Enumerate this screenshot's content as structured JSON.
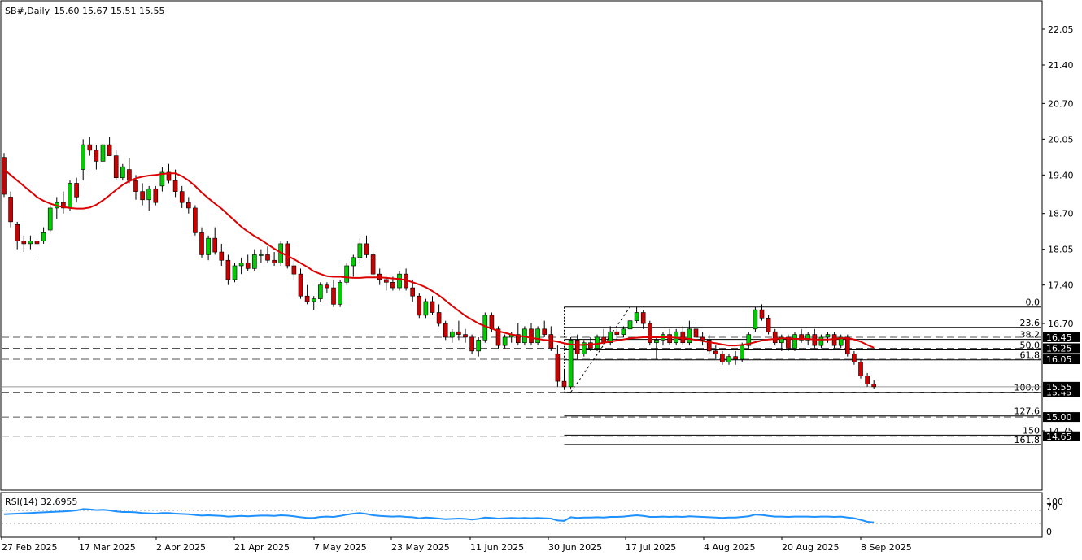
{
  "header": {
    "symbol_tf": "SB#,Daily",
    "ohlc": "15.60 15.67 15.51 15.55"
  },
  "rsi_panel": {
    "label": "RSI(14) 32.6955",
    "levels": [
      "100",
      "70",
      "0"
    ]
  },
  "colors": {
    "bull": "#00cc00",
    "bear": "#cc0000",
    "wick": "#000000",
    "ma": "#dd0000",
    "rsi": "#1e90ff",
    "fib": "#000000",
    "dash": "#555555",
    "tag_bg": "#000000",
    "tag_fg": "#ffffff"
  },
  "chart_data": {
    "type": "candlestick",
    "title": "SB#,Daily",
    "price_axis": {
      "ticks": [
        "22.05",
        "21.40",
        "20.70",
        "20.05",
        "19.40",
        "18.70",
        "18.05",
        "17.40",
        "16.70",
        "14.75"
      ],
      "range": [
        14.6,
        22.5
      ]
    },
    "time_axis": {
      "labels": [
        "27 Feb 2025",
        "17 Mar 2025",
        "2 Apr 2025",
        "21 Apr 2025",
        "7 May 2025",
        "23 May 2025",
        "11 Jun 2025",
        "30 Jun 2025",
        "17 Jul 2025",
        "4 Aug 2025",
        "20 Aug 2025",
        "8 Sep 2025"
      ]
    },
    "fibonacci": {
      "high": 17.0,
      "low": 15.45,
      "levels": [
        {
          "label": "0.0",
          "price": 17.0
        },
        {
          "label": "23.6",
          "price": 16.63
        },
        {
          "label": "38.2",
          "price": 16.41
        },
        {
          "label": "50.0",
          "price": 16.22
        },
        {
          "label": "61.8",
          "price": 16.04
        },
        {
          "label": "100.0",
          "price": 15.45
        },
        {
          "label": "127.6",
          "price": 15.02
        },
        {
          "label": "150",
          "price": 14.67
        },
        {
          "label": "161.8",
          "price": 14.5
        }
      ]
    },
    "horizontal_lines": [
      {
        "label": "16.45",
        "price": 16.45
      },
      {
        "label": "16.25",
        "price": 16.25
      },
      {
        "label": "16.05",
        "price": 16.05
      },
      {
        "label": "15.45",
        "price": 15.45
      },
      {
        "label": "15.00",
        "price": 15.0
      },
      {
        "label": "14.65",
        "price": 14.65
      }
    ],
    "current_price": {
      "label": "15.55",
      "price": 15.55
    },
    "candles": [
      [
        19.72,
        19.8,
        19.0,
        19.05
      ],
      [
        19.0,
        19.1,
        18.45,
        18.55
      ],
      [
        18.5,
        18.55,
        18.05,
        18.2
      ],
      [
        18.2,
        18.3,
        18.0,
        18.15
      ],
      [
        18.15,
        18.3,
        18.05,
        18.2
      ],
      [
        18.2,
        18.3,
        17.9,
        18.15
      ],
      [
        18.2,
        18.45,
        18.15,
        18.35
      ],
      [
        18.4,
        18.85,
        18.35,
        18.8
      ],
      [
        18.8,
        19.0,
        18.6,
        18.9
      ],
      [
        18.9,
        19.1,
        18.7,
        18.8
      ],
      [
        18.8,
        19.3,
        18.75,
        19.25
      ],
      [
        19.25,
        19.35,
        18.9,
        19.0
      ],
      [
        19.5,
        20.05,
        19.3,
        19.95
      ],
      [
        19.95,
        20.1,
        19.75,
        19.85
      ],
      [
        19.85,
        19.95,
        19.5,
        19.65
      ],
      [
        19.65,
        20.1,
        19.6,
        19.95
      ],
      [
        19.95,
        20.1,
        19.75,
        19.75
      ],
      [
        19.75,
        19.85,
        19.3,
        19.35
      ],
      [
        19.35,
        19.6,
        19.3,
        19.55
      ],
      [
        19.5,
        19.7,
        19.25,
        19.3
      ],
      [
        19.3,
        19.4,
        18.95,
        19.1
      ],
      [
        19.1,
        19.25,
        18.85,
        18.95
      ],
      [
        18.95,
        19.2,
        18.75,
        19.15
      ],
      [
        19.15,
        19.2,
        18.85,
        18.9
      ],
      [
        19.2,
        19.55,
        19.1,
        19.45
      ],
      [
        19.45,
        19.6,
        19.25,
        19.3
      ],
      [
        19.3,
        19.5,
        19.0,
        19.1
      ],
      [
        19.1,
        19.2,
        18.8,
        18.9
      ],
      [
        18.9,
        19.0,
        18.7,
        18.8
      ],
      [
        18.8,
        18.85,
        18.3,
        18.35
      ],
      [
        18.35,
        18.45,
        17.9,
        17.95
      ],
      [
        17.95,
        18.3,
        17.85,
        18.25
      ],
      [
        18.25,
        18.45,
        17.95,
        18.0
      ],
      [
        18.0,
        18.15,
        17.75,
        17.85
      ],
      [
        17.85,
        17.95,
        17.4,
        17.5
      ],
      [
        17.5,
        17.8,
        17.45,
        17.75
      ],
      [
        17.75,
        17.9,
        17.6,
        17.8
      ],
      [
        17.8,
        17.95,
        17.65,
        17.7
      ],
      [
        17.7,
        18.05,
        17.65,
        17.95
      ],
      [
        17.95,
        18.05,
        17.8,
        17.95
      ],
      [
        17.95,
        18.1,
        17.8,
        17.85
      ],
      [
        17.85,
        18.0,
        17.75,
        17.8
      ],
      [
        17.8,
        18.2,
        17.75,
        18.15
      ],
      [
        18.15,
        18.2,
        17.7,
        17.75
      ],
      [
        17.75,
        17.9,
        17.5,
        17.6
      ],
      [
        17.6,
        17.7,
        17.15,
        17.2
      ],
      [
        17.2,
        17.4,
        17.05,
        17.1
      ],
      [
        17.1,
        17.2,
        16.95,
        17.15
      ],
      [
        17.15,
        17.45,
        17.1,
        17.4
      ],
      [
        17.4,
        17.45,
        17.25,
        17.35
      ],
      [
        17.35,
        17.5,
        17.0,
        17.05
      ],
      [
        17.05,
        17.5,
        17.0,
        17.45
      ],
      [
        17.45,
        17.8,
        17.4,
        17.75
      ],
      [
        17.75,
        17.95,
        17.55,
        17.9
      ],
      [
        17.9,
        18.25,
        17.8,
        18.15
      ],
      [
        18.15,
        18.3,
        17.9,
        17.95
      ],
      [
        17.95,
        18.0,
        17.55,
        17.6
      ],
      [
        17.6,
        17.7,
        17.4,
        17.5
      ],
      [
        17.5,
        17.55,
        17.3,
        17.45
      ],
      [
        17.45,
        17.55,
        17.3,
        17.35
      ],
      [
        17.35,
        17.65,
        17.3,
        17.6
      ],
      [
        17.6,
        17.7,
        17.3,
        17.35
      ],
      [
        17.35,
        17.5,
        17.1,
        17.2
      ],
      [
        17.2,
        17.25,
        16.8,
        16.85
      ],
      [
        16.85,
        17.15,
        16.8,
        17.1
      ],
      [
        17.1,
        17.2,
        16.85,
        16.9
      ],
      [
        16.9,
        17.05,
        16.65,
        16.7
      ],
      [
        16.7,
        16.75,
        16.4,
        16.45
      ],
      [
        16.45,
        16.6,
        16.35,
        16.55
      ],
      [
        16.55,
        16.75,
        16.4,
        16.5
      ],
      [
        16.5,
        16.6,
        16.35,
        16.45
      ],
      [
        16.45,
        16.5,
        16.15,
        16.2
      ],
      [
        16.2,
        16.45,
        16.1,
        16.4
      ],
      [
        16.4,
        16.9,
        16.35,
        16.85
      ],
      [
        16.85,
        16.9,
        16.55,
        16.6
      ],
      [
        16.6,
        16.65,
        16.25,
        16.3
      ],
      [
        16.3,
        16.5,
        16.25,
        16.45
      ],
      [
        16.45,
        16.55,
        16.35,
        16.5
      ],
      [
        16.5,
        16.7,
        16.3,
        16.35
      ],
      [
        16.35,
        16.65,
        16.3,
        16.6
      ],
      [
        16.6,
        16.7,
        16.3,
        16.35
      ],
      [
        16.35,
        16.65,
        16.3,
        16.6
      ],
      [
        16.6,
        16.75,
        16.45,
        16.5
      ],
      [
        16.5,
        16.65,
        16.2,
        16.25
      ],
      [
        16.15,
        16.3,
        15.55,
        15.65
      ],
      [
        15.65,
        15.85,
        15.5,
        15.55
      ],
      [
        15.55,
        16.45,
        15.5,
        16.4
      ],
      [
        16.4,
        16.5,
        16.05,
        16.15
      ],
      [
        16.15,
        16.4,
        16.1,
        16.35
      ],
      [
        16.35,
        16.45,
        16.2,
        16.25
      ],
      [
        16.25,
        16.5,
        16.2,
        16.45
      ],
      [
        16.45,
        16.6,
        16.3,
        16.35
      ],
      [
        16.35,
        16.65,
        16.3,
        16.55
      ],
      [
        16.55,
        16.6,
        16.4,
        16.5
      ],
      [
        16.5,
        16.65,
        16.45,
        16.6
      ],
      [
        16.6,
        16.8,
        16.55,
        16.75
      ],
      [
        16.75,
        17.0,
        16.7,
        16.9
      ],
      [
        16.9,
        16.95,
        16.6,
        16.7
      ],
      [
        16.7,
        16.75,
        16.3,
        16.35
      ],
      [
        16.35,
        16.45,
        16.05,
        16.4
      ],
      [
        16.4,
        16.55,
        16.3,
        16.5
      ],
      [
        16.5,
        16.6,
        16.3,
        16.35
      ],
      [
        16.35,
        16.6,
        16.3,
        16.55
      ],
      [
        16.55,
        16.65,
        16.3,
        16.35
      ],
      [
        16.35,
        16.75,
        16.3,
        16.6
      ],
      [
        16.6,
        16.7,
        16.4,
        16.45
      ],
      [
        16.45,
        16.55,
        16.3,
        16.4
      ],
      [
        16.4,
        16.5,
        16.15,
        16.2
      ],
      [
        16.2,
        16.3,
        16.05,
        16.15
      ],
      [
        16.15,
        16.2,
        15.95,
        16.0
      ],
      [
        16.0,
        16.15,
        15.95,
        16.1
      ],
      [
        16.1,
        16.2,
        15.95,
        16.05
      ],
      [
        16.05,
        16.35,
        16.0,
        16.3
      ],
      [
        16.3,
        16.55,
        16.25,
        16.5
      ],
      [
        16.6,
        17.0,
        16.55,
        16.95
      ],
      [
        16.95,
        17.05,
        16.75,
        16.8
      ],
      [
        16.8,
        16.85,
        16.5,
        16.55
      ],
      [
        16.55,
        16.6,
        16.3,
        16.35
      ],
      [
        16.35,
        16.5,
        16.2,
        16.45
      ],
      [
        16.45,
        16.5,
        16.2,
        16.25
      ],
      [
        16.25,
        16.55,
        16.2,
        16.5
      ],
      [
        16.5,
        16.6,
        16.35,
        16.4
      ],
      [
        16.4,
        16.55,
        16.3,
        16.5
      ],
      [
        16.5,
        16.6,
        16.25,
        16.3
      ],
      [
        16.3,
        16.5,
        16.25,
        16.45
      ],
      [
        16.45,
        16.55,
        16.35,
        16.5
      ],
      [
        16.5,
        16.55,
        16.25,
        16.3
      ],
      [
        16.3,
        16.5,
        16.25,
        16.45
      ],
      [
        16.45,
        16.5,
        16.1,
        16.15
      ],
      [
        16.15,
        16.2,
        15.95,
        16.0
      ],
      [
        16.0,
        16.05,
        15.7,
        15.75
      ],
      [
        15.75,
        15.8,
        15.55,
        15.6
      ],
      [
        15.6,
        15.67,
        15.51,
        15.55
      ]
    ],
    "ma": [
      19.5,
      19.4,
      19.3,
      19.2,
      19.1,
      19.0,
      18.93,
      18.88,
      18.84,
      18.82,
      18.8,
      18.79,
      18.79,
      18.81,
      18.86,
      18.94,
      19.03,
      19.13,
      19.22,
      19.29,
      19.34,
      19.37,
      19.39,
      19.4,
      19.42,
      19.43,
      19.43,
      19.38,
      19.3,
      19.2,
      19.08,
      18.98,
      18.88,
      18.79,
      18.68,
      18.57,
      18.46,
      18.37,
      18.29,
      18.22,
      18.14,
      18.06,
      17.99,
      17.93,
      17.87,
      17.8,
      17.73,
      17.65,
      17.6,
      17.56,
      17.55,
      17.55,
      17.54,
      17.53,
      17.53,
      17.54,
      17.54,
      17.54,
      17.53,
      17.52,
      17.51,
      17.49,
      17.45,
      17.41,
      17.36,
      17.29,
      17.21,
      17.12,
      17.02,
      16.93,
      16.84,
      16.77,
      16.7,
      16.65,
      16.61,
      16.56,
      16.53,
      16.5,
      16.48,
      16.46,
      16.44,
      16.42,
      16.4,
      16.39,
      16.37,
      16.34,
      16.32,
      16.31,
      16.31,
      16.32,
      16.33,
      16.35,
      16.37,
      16.39,
      16.41,
      16.43,
      16.44,
      16.45,
      16.45,
      16.45,
      16.45,
      16.45,
      16.44,
      16.43,
      16.42,
      16.4,
      16.38,
      16.36,
      16.34,
      16.32,
      16.3,
      16.3,
      16.31,
      16.33,
      16.36,
      16.39,
      16.41,
      16.42,
      16.43,
      16.43,
      16.42,
      16.42,
      16.42,
      16.41,
      16.41,
      16.41,
      16.42,
      16.43,
      16.43,
      16.41,
      16.37,
      16.31,
      16.26
    ],
    "rsi": [
      58,
      59,
      60,
      61,
      62,
      63,
      64,
      65,
      66,
      67,
      68,
      70,
      74,
      73,
      71,
      72,
      70,
      67,
      65,
      65,
      64,
      62,
      61,
      60,
      62,
      62,
      60,
      59,
      58,
      56,
      54,
      55,
      54,
      53,
      51,
      52,
      53,
      52,
      53,
      54,
      54,
      53,
      55,
      54,
      52,
      49,
      47,
      47,
      50,
      51,
      50,
      53,
      57,
      60,
      62,
      59,
      55,
      53,
      52,
      51,
      52,
      50,
      49,
      46,
      48,
      47,
      45,
      43,
      44,
      45,
      44,
      42,
      44,
      48,
      47,
      45,
      46,
      47,
      46,
      47,
      46,
      47,
      46,
      45,
      39,
      38,
      49,
      47,
      48,
      48,
      49,
      48,
      50,
      50,
      51,
      53,
      55,
      53,
      50,
      50,
      51,
      50,
      51,
      50,
      52,
      51,
      50,
      49,
      48,
      47,
      48,
      48,
      50,
      52,
      57,
      56,
      53,
      51,
      51,
      50,
      51,
      51,
      51,
      50,
      51,
      51,
      50,
      51,
      48,
      46,
      41,
      35,
      33
    ]
  }
}
